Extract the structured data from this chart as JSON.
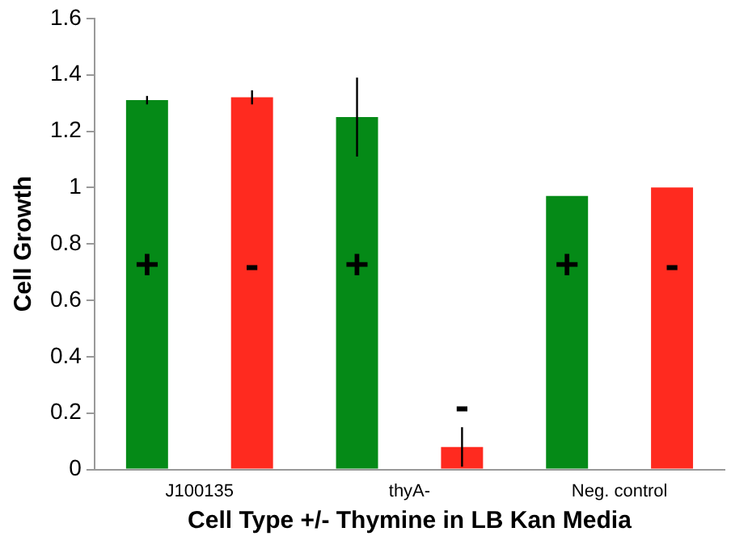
{
  "chart_data": {
    "type": "bar",
    "xlabel": "Cell Type +/- Thymine in LB Kan Media",
    "ylabel": "Cell Growth",
    "categories": [
      "J100135",
      "thyA-",
      "Neg. control"
    ],
    "series": [
      {
        "color": "#058a17",
        "values": [
          1.31,
          1.25,
          0.97
        ],
        "errors": [
          0.015,
          [
            1.11,
            1.39
          ],
          null
        ],
        "value_labels": [
          "+",
          "+",
          "+"
        ]
      },
      {
        "color": "#ff2a1f",
        "values": [
          1.32,
          0.08,
          1.0
        ],
        "errors": [
          0.025,
          [
            0.01,
            0.15
          ],
          null
        ],
        "value_labels": [
          "-",
          "-",
          "-"
        ]
      }
    ],
    "ylim": [
      0,
      1.6
    ],
    "yticks": [
      0,
      0.2,
      0.4,
      0.6,
      0.8,
      1,
      1.2,
      1.4,
      1.6
    ],
    "grid": false,
    "legend": false
  }
}
